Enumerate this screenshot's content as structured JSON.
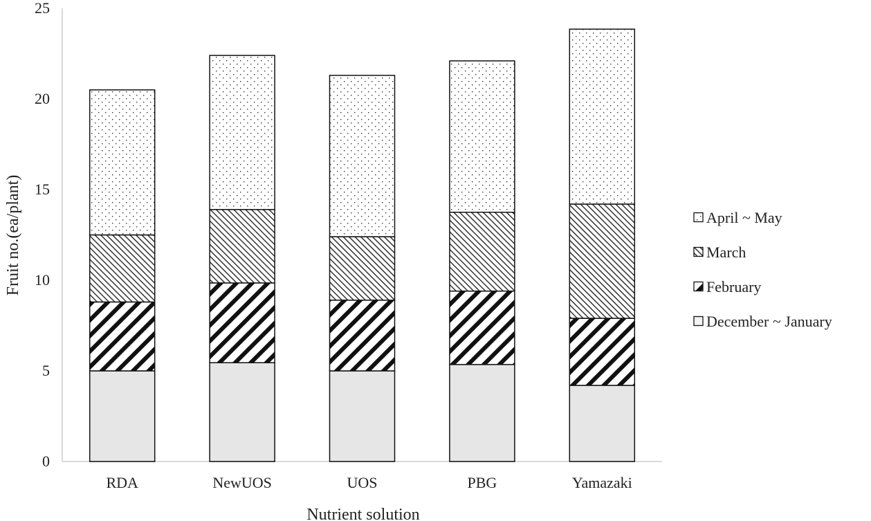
{
  "chart_data": {
    "type": "bar",
    "stacked": true,
    "title": "",
    "xlabel": "Nutrient solution",
    "ylabel": "Fruit no.(ea/plant)",
    "ylim": [
      0,
      25
    ],
    "yticks": [
      0,
      5,
      10,
      15,
      20,
      25
    ],
    "grid": false,
    "legend_position": "right",
    "categories": [
      "RDA",
      "NewUOS",
      "UOS",
      "PBG",
      "Yamazaki"
    ],
    "series": [
      {
        "name": "December ~ January",
        "pattern": "solid-gray",
        "values": [
          5.0,
          5.45,
          5.0,
          5.35,
          4.2
        ]
      },
      {
        "name": "February",
        "pattern": "wide-diagonal",
        "values": [
          3.8,
          4.4,
          3.9,
          4.05,
          3.7
        ]
      },
      {
        "name": "March",
        "pattern": "fine-diagonal",
        "values": [
          3.7,
          4.05,
          3.5,
          4.35,
          6.3
        ]
      },
      {
        "name": "April ~ May",
        "pattern": "dots",
        "values": [
          8.0,
          8.5,
          8.9,
          8.35,
          9.65
        ]
      }
    ],
    "legend_order": [
      "April ~ May",
      "March",
      "February",
      "December ~ January"
    ],
    "colors": {
      "solid": "#e6e6e6",
      "stroke": "#111111",
      "axis": "#d9d9d9"
    }
  }
}
